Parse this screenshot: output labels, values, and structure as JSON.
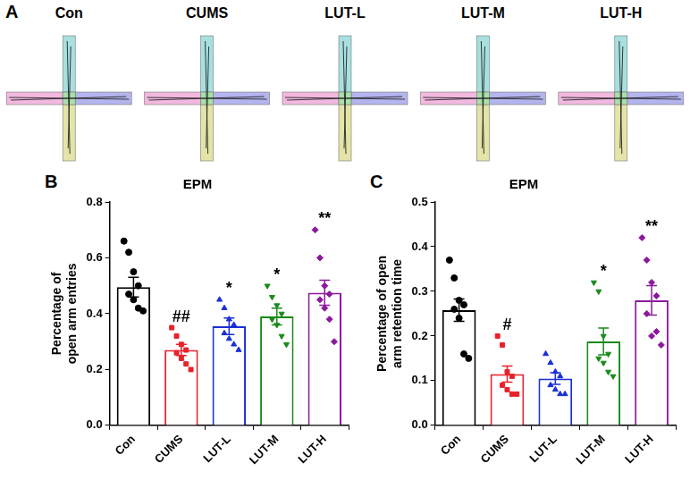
{
  "panel_a": {
    "letter": "A",
    "labels": [
      "Con",
      "CUMS",
      "LUT-L",
      "LUT-M",
      "LUT-H"
    ]
  },
  "chart_data": [
    {
      "panel": "B",
      "type": "bar",
      "title": "EPM",
      "ylabel": "Percentage of open arm entries",
      "categories": [
        "Con",
        "CUMS",
        "LUT-L",
        "LUT-M",
        "LUT-H"
      ],
      "values": [
        0.495,
        0.27,
        0.355,
        0.39,
        0.475
      ],
      "errors": [
        0.035,
        0.02,
        0.03,
        0.03,
        0.045
      ],
      "points": [
        [
          0.66,
          0.62,
          0.55,
          0.5,
          0.47,
          0.45,
          0.42,
          0.41
        ],
        [
          0.35,
          0.32,
          0.29,
          0.27,
          0.26,
          0.24,
          0.22,
          0.2
        ],
        [
          0.45,
          0.42,
          0.38,
          0.36,
          0.33,
          0.31,
          0.29,
          0.27
        ],
        [
          0.5,
          0.46,
          0.43,
          0.4,
          0.38,
          0.36,
          0.32,
          0.29
        ],
        [
          0.7,
          0.6,
          0.5,
          0.47,
          0.45,
          0.42,
          0.38,
          0.3
        ]
      ],
      "colors": [
        "#000000",
        "#e8222a",
        "#1a2fd6",
        "#1a8a1a",
        "#8b1a9b"
      ],
      "marker": [
        "circle",
        "square",
        "triangle-up",
        "triangle-down",
        "diamond"
      ],
      "annotations": [
        null,
        "##",
        "*",
        "*",
        "**"
      ],
      "ylim": [
        0,
        0.8
      ],
      "yticks": [
        {
          "value": 0,
          "label": "0.0"
        },
        0.2,
        0.4,
        0.6,
        0.8
      ],
      "grid": false
    },
    {
      "panel": "C",
      "type": "bar",
      "title": "EPM",
      "ylabel": "Percentage of open arm retention time",
      "categories": [
        "Con",
        "CUMS",
        "LUT-L",
        "LUT-M",
        "LUT-H"
      ],
      "values": [
        0.258,
        0.115,
        0.105,
        0.188,
        0.28
      ],
      "errors": [
        0.025,
        0.018,
        0.013,
        0.03,
        0.033
      ],
      "points": [
        [
          0.37,
          0.33,
          0.28,
          0.27,
          0.26,
          0.24,
          0.16,
          0.15
        ],
        [
          0.2,
          0.18,
          0.12,
          0.11,
          0.09,
          0.08,
          0.07,
          0.07
        ],
        [
          0.16,
          0.14,
          0.12,
          0.11,
          0.09,
          0.08,
          0.07,
          0.07
        ],
        [
          0.32,
          0.3,
          0.2,
          0.16,
          0.15,
          0.14,
          0.12,
          0.11
        ],
        [
          0.42,
          0.37,
          0.32,
          0.29,
          0.25,
          0.2,
          0.21,
          0.18
        ]
      ],
      "colors": [
        "#000000",
        "#e8222a",
        "#1a2fd6",
        "#1a8a1a",
        "#8b1a9b"
      ],
      "marker": [
        "circle",
        "square",
        "triangle-up",
        "triangle-down",
        "diamond"
      ],
      "annotations": [
        null,
        "#",
        null,
        "*",
        "**"
      ],
      "ylim": [
        0,
        0.5
      ],
      "yticks": [
        {
          "value": 0,
          "label": "0.0"
        },
        0.1,
        0.2,
        0.3,
        0.4,
        0.5
      ],
      "grid": false
    }
  ]
}
